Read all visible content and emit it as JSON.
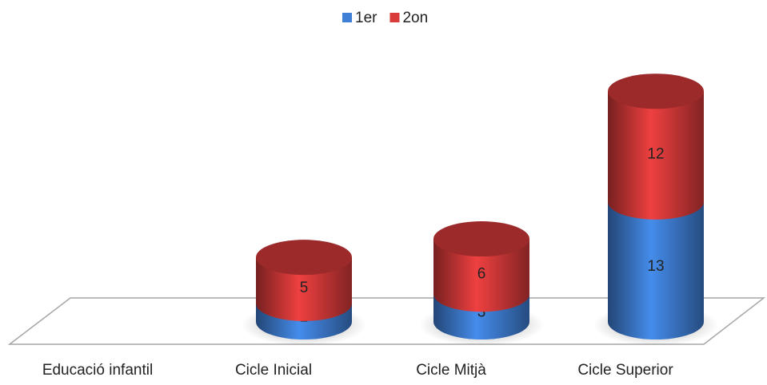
{
  "chart_data": {
    "type": "bar3d-stacked",
    "categories": [
      "Educació infantil",
      "Cicle Inicial",
      "Cicle Mitjà",
      "Cicle Superior"
    ],
    "series": [
      {
        "name": "1er",
        "color": "#3f7fd6",
        "values": [
          null,
          2,
          3,
          13
        ]
      },
      {
        "name": "2on",
        "color": "#d93a3a",
        "values": [
          null,
          5,
          6,
          12
        ]
      }
    ],
    "legend": "top"
  }
}
